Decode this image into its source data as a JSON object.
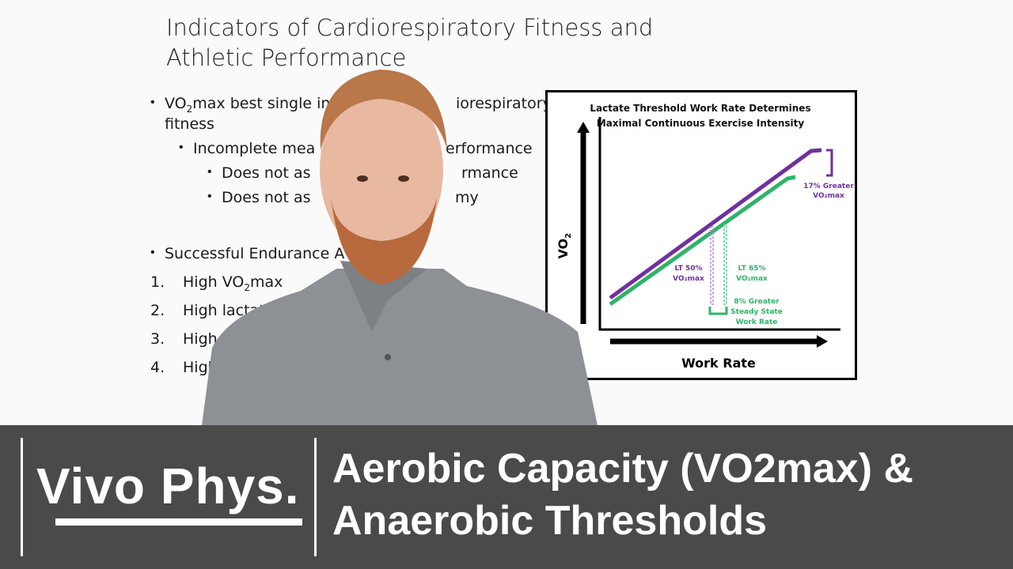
{
  "slide": {
    "title_line1": "Indicators of Cardiorespiratory Fitness and",
    "title_line2": "Athletic Performance",
    "bullets": {
      "b1_a": "VO",
      "b1_sub": "2",
      "b1_b": "max best single in",
      "b1_c": "iorespiratory",
      "b1_line2": "fitness",
      "b2_a": "Incomplete mea",
      "b2_b": "erformance",
      "b3_a": "Does not as",
      "b3_b": "rmance",
      "b4_a": "Does not as",
      "b4_b": "my",
      "b5": "Successful Endurance A"
    },
    "numbered": [
      {
        "num": "1.",
        "a": "High VO",
        "sub": "2",
        "b": "max"
      },
      {
        "num": "2.",
        "a": "High lactate"
      },
      {
        "num": "3.",
        "a": "High ex"
      },
      {
        "num": "4.",
        "a": "High"
      }
    ]
  },
  "diagram": {
    "title_line1": "Lactate Threshold Work Rate Determines",
    "title_line2": "Maximal Continuous Exercise Intensity",
    "y_label": "VO",
    "y_label_sub": "2",
    "x_label": "Work Rate",
    "purple_label_1": "17% Greater",
    "purple_label_2": "VO₂max",
    "lt50_1": "LT 50%",
    "lt50_2": "VO₂max",
    "lt65_1": "LT 65%",
    "lt65_2": "VO₂max",
    "green_label_1": "8% Greater",
    "green_label_2": "Steady State",
    "green_label_3": "Work Rate",
    "colors": {
      "purple": "#7030a0",
      "green": "#2eb36a"
    }
  },
  "banner": {
    "logo_text": "Vivo Phys.",
    "title_line1": "Aerobic Capacity (VO2max) &",
    "title_line2": "Anaerobic Thresholds",
    "background": "#4a4a4a"
  }
}
